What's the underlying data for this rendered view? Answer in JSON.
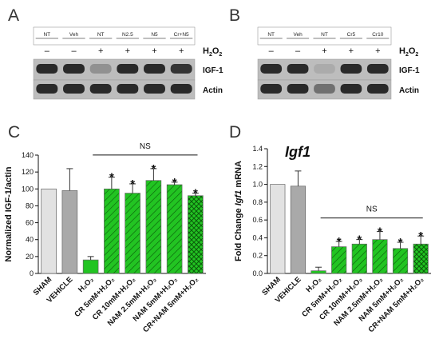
{
  "blot_a": {
    "panel_label": "A",
    "lanes": [
      "NT",
      "Veh",
      "NT",
      "N2.5",
      "N5",
      "Cr+N5"
    ],
    "signs": [
      "–",
      "–",
      "+",
      "+",
      "+",
      "+"
    ],
    "treatment": "H",
    "treatment_sub": "2",
    "treatment_mid": "O",
    "treatment_sub2": "2",
    "bands": [
      "IGF-1",
      "Actin"
    ]
  },
  "blot_b": {
    "panel_label": "B",
    "lanes": [
      "NT",
      "Veh",
      "NT",
      "Cr5",
      "Cr10"
    ],
    "signs": [
      "–",
      "–",
      "+",
      "+",
      "+"
    ],
    "treatment": "H",
    "treatment_sub": "2",
    "treatment_mid": "O",
    "treatment_sub2": "2",
    "bands": [
      "IGF-1",
      "Actin"
    ]
  },
  "chart_data": [
    {
      "panel_label": "C",
      "type": "bar",
      "ylabel": "Normalized IGF-1/actin",
      "ylim": [
        0,
        140
      ],
      "yticks": [
        "0",
        "20",
        "40",
        "60",
        "80",
        "100",
        "120",
        "140"
      ],
      "categories": [
        "SHAM",
        "VEHICLE",
        "H₂O₂",
        "CR 5mM+H₂O₂",
        "CR 10mM+H₂O₂",
        "NAM 2.5mM+H₂O₂",
        "NAM 5mM+H₂O₂",
        "CR+NAM 5mM+H₂O₂"
      ],
      "values": [
        100,
        98,
        16,
        100,
        95,
        110,
        105,
        92
      ],
      "errors": [
        0,
        26,
        4,
        14,
        11,
        14,
        3,
        3
      ],
      "stars": [
        "",
        "",
        "",
        "*",
        "*",
        "*",
        "*",
        "*"
      ],
      "bracket_label": "NS",
      "colors": [
        "#e2e2e2",
        "#a9a9a9",
        "#22c422",
        "#22c422",
        "#22c422",
        "#22c422",
        "#22c422",
        "#22c422"
      ],
      "patterns": [
        "none",
        "none",
        "none",
        "hatch",
        "hatch",
        "hatch",
        "hatch",
        "cross"
      ]
    },
    {
      "panel_label": "D",
      "type": "bar",
      "title": "Igf1",
      "ylabel": "Fold Change Igf1 mRNA",
      "ylim": [
        0,
        1.4
      ],
      "yticks": [
        "0.0",
        "0.2",
        "0.4",
        "0.6",
        "0.8",
        "1.0",
        "1.2",
        "1.4"
      ],
      "categories": [
        "SHAM",
        "VEHICLE",
        "H₂O₂",
        "CR 5mM+H₂O₂",
        "CR 10mM+H₂O₂",
        "NAM 2.5mM+H₂O₂",
        "NAM 5mM+H₂O₂",
        "CR+NAM 5mM+H₂O₂"
      ],
      "values": [
        1.0,
        0.98,
        0.03,
        0.3,
        0.33,
        0.38,
        0.28,
        0.33
      ],
      "errors": [
        0,
        0.17,
        0.04,
        0.06,
        0.05,
        0.09,
        0.07,
        0.09
      ],
      "stars": [
        "",
        "",
        "",
        "*",
        "*",
        "*",
        "*",
        "*"
      ],
      "bracket_label": "NS",
      "colors": [
        "#e2e2e2",
        "#a9a9a9",
        "#22c422",
        "#22c422",
        "#22c422",
        "#22c422",
        "#22c422",
        "#22c422"
      ],
      "patterns": [
        "none",
        "none",
        "none",
        "hatch",
        "hatch",
        "hatch",
        "hatch",
        "cross"
      ]
    }
  ]
}
